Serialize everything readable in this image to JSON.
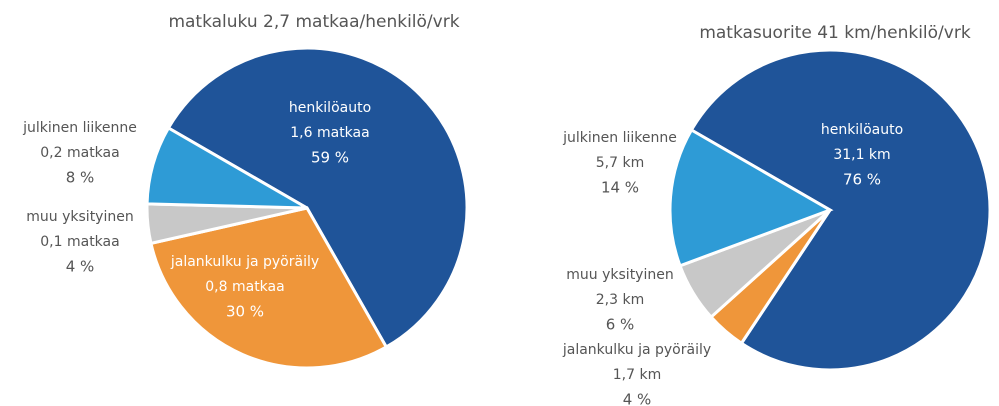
{
  "chart_data": [
    {
      "type": "pie",
      "title": "matkaluku 2,7 matkaa/henkilö/vrk",
      "categories": [
        "henkilöauto",
        "jalankulku ja pyöräily",
        "muu yksityinen",
        "julkinen liikenne"
      ],
      "values": [
        59,
        30,
        4,
        8
      ],
      "value_labels": [
        "59 %",
        "30 %",
        "4 %",
        "8 %"
      ],
      "amount_labels": [
        "1,6 matkaa",
        "0,8 matkaa",
        "0,1 matkaa",
        "0,2 matkaa"
      ],
      "colors": [
        "#1f5499",
        "#ef963a",
        "#c8c8c8",
        "#2e9bd6"
      ]
    },
    {
      "type": "pie",
      "title": "matkasuorite 41 km/henkilö/vrk",
      "categories": [
        "henkilöauto",
        "jalankulku ja pyöräily",
        "muu yksityinen",
        "julkinen liikenne"
      ],
      "values": [
        76,
        4,
        6,
        14
      ],
      "value_labels": [
        "76 %",
        "4 %",
        "6 %",
        "14 %"
      ],
      "amount_labels": [
        "31,1 km",
        "1,7 km",
        "2,3 km",
        "5,7 km"
      ],
      "colors": [
        "#1f5499",
        "#ef963a",
        "#c8c8c8",
        "#2e9bd6"
      ]
    }
  ]
}
